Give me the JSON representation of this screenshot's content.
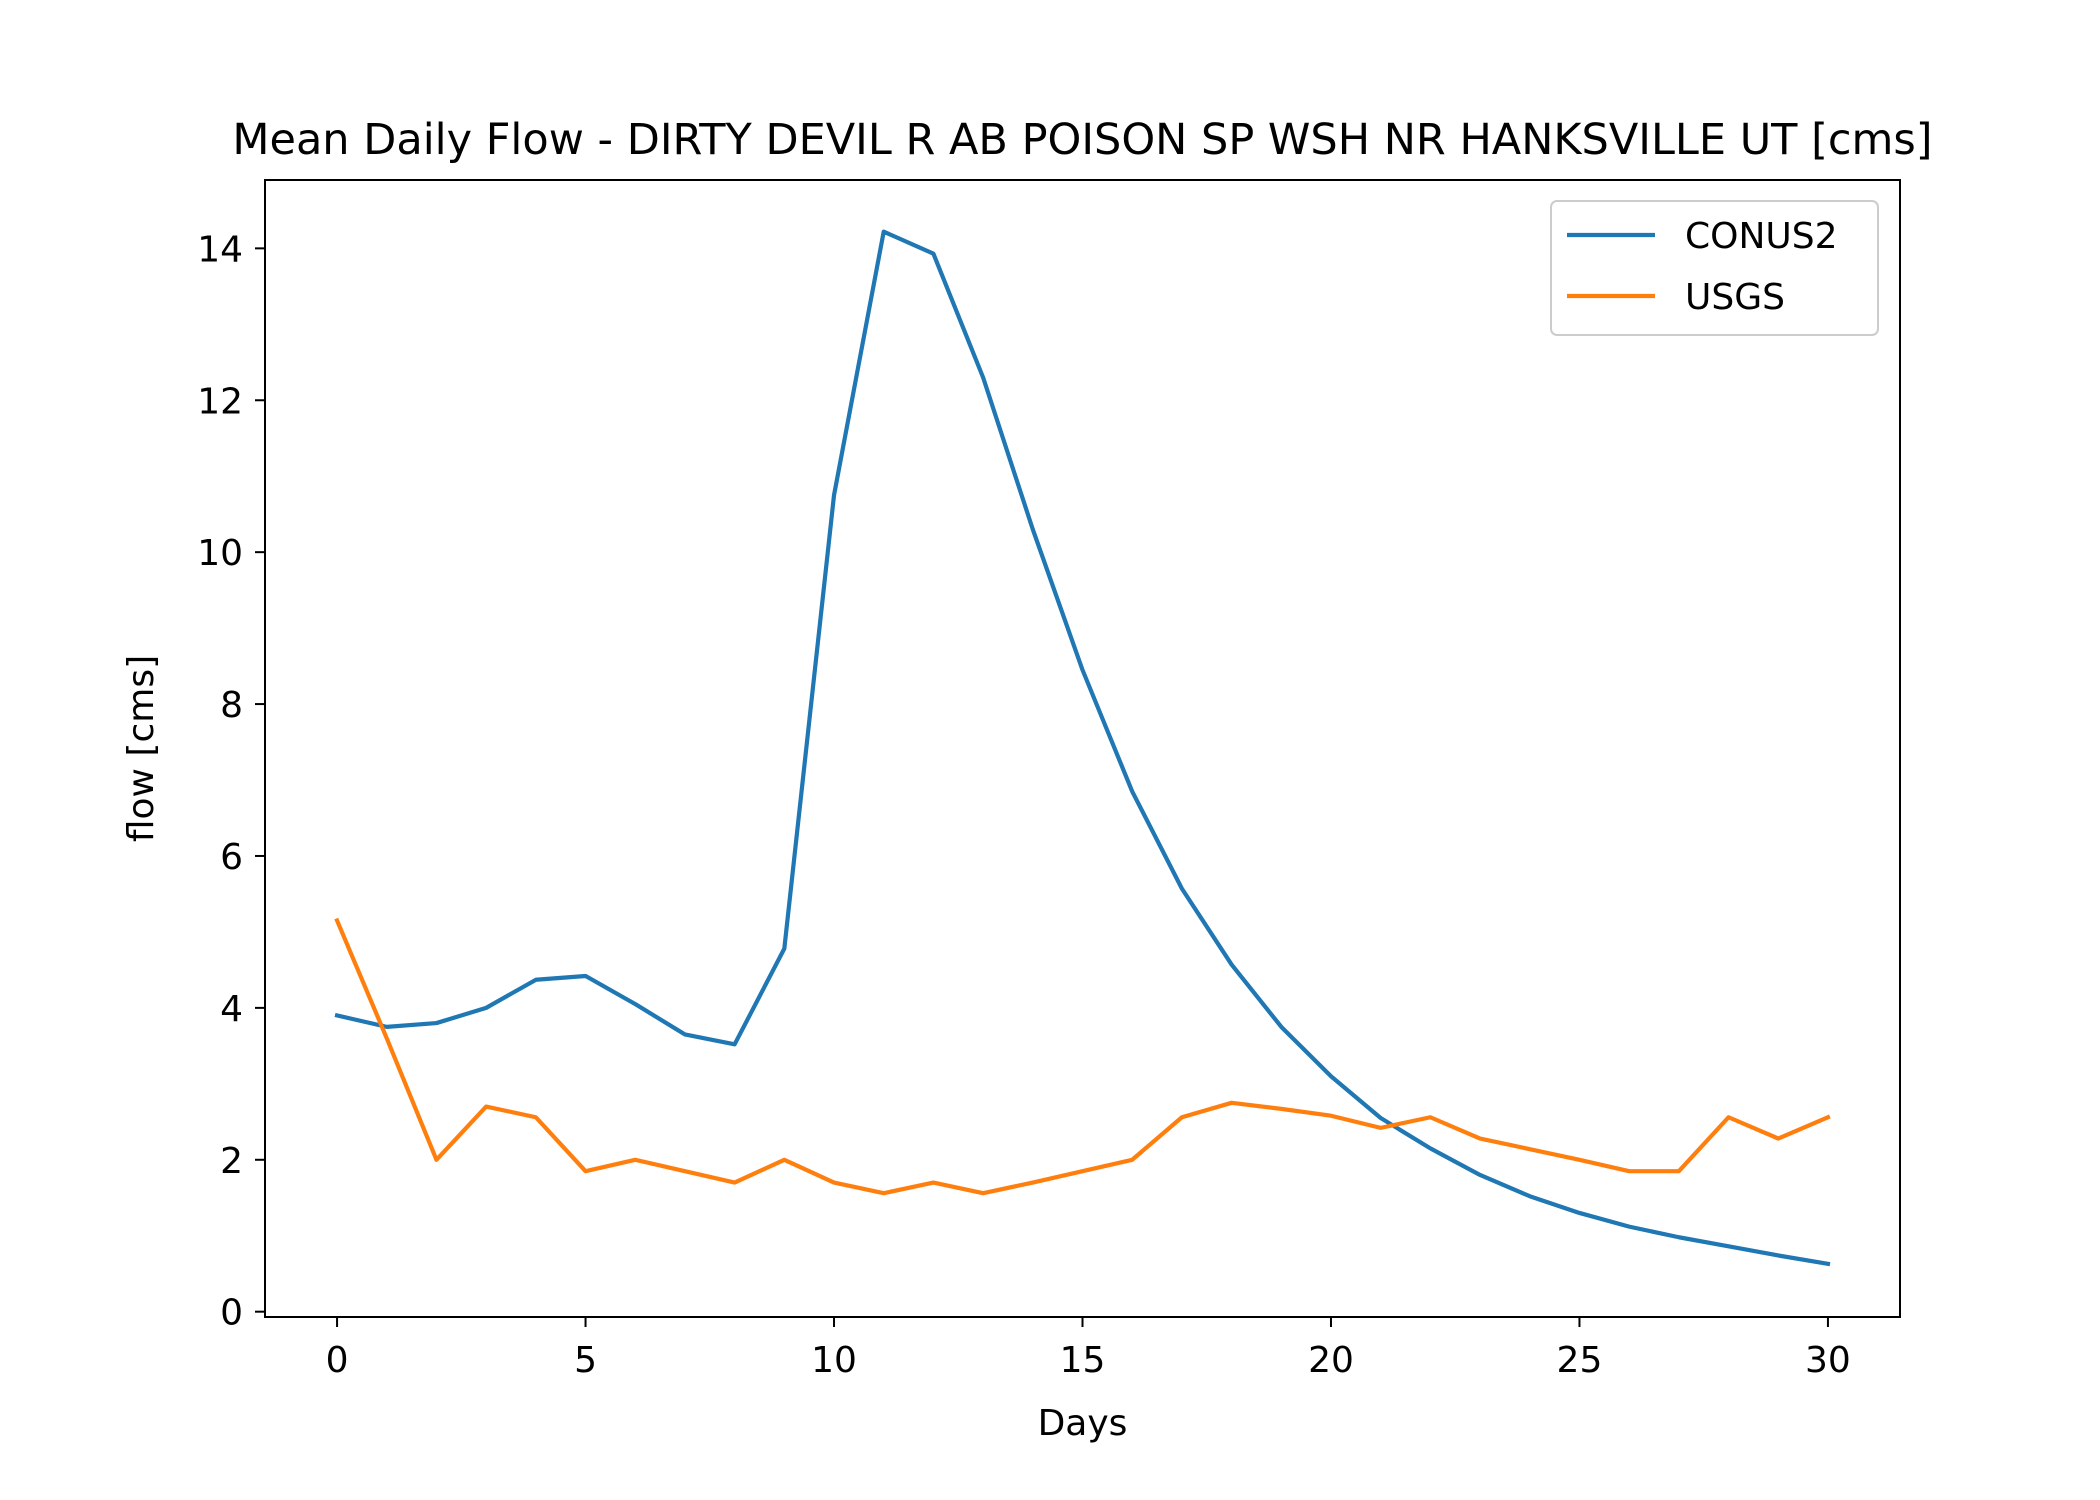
{
  "chart_data": {
    "type": "line",
    "title": "Mean Daily Flow - DIRTY DEVIL R AB POISON SP WSH NR HANKSVILLE UT [cms]",
    "xlabel": "Days",
    "ylabel": "flow [cms]",
    "xlim": [
      -1.45,
      31.45
    ],
    "ylim": [
      -0.07,
      14.9
    ],
    "xticks": [
      0,
      5,
      10,
      15,
      20,
      25,
      30
    ],
    "yticks": [
      0,
      2,
      4,
      6,
      8,
      10,
      12,
      14
    ],
    "grid": false,
    "legend_position": "top-right",
    "x": [
      0,
      1,
      2,
      3,
      4,
      5,
      6,
      7,
      8,
      9,
      10,
      11,
      12,
      13,
      14,
      15,
      16,
      17,
      18,
      19,
      20,
      21,
      22,
      23,
      24,
      25,
      26,
      27,
      28,
      29,
      30
    ],
    "series": [
      {
        "name": "CONUS2",
        "color": "#1f77b4",
        "values": [
          3.9,
          3.75,
          3.8,
          4.0,
          4.37,
          4.42,
          4.05,
          3.65,
          3.52,
          4.78,
          10.75,
          14.22,
          13.93,
          12.3,
          10.3,
          8.45,
          6.85,
          5.57,
          4.57,
          3.75,
          3.1,
          2.55,
          2.15,
          1.8,
          1.52,
          1.3,
          1.12,
          0.98,
          0.86,
          0.74,
          0.63
        ]
      },
      {
        "name": "USGS",
        "color": "#ff7f0e",
        "values": [
          5.15,
          3.6,
          2.0,
          2.7,
          2.56,
          1.85,
          2.0,
          1.85,
          1.7,
          2.0,
          1.7,
          1.56,
          1.7,
          1.56,
          1.7,
          1.85,
          2.0,
          2.56,
          2.75,
          2.67,
          2.58,
          2.42,
          2.56,
          2.28,
          2.14,
          2.0,
          1.85,
          1.85,
          2.56,
          2.28,
          2.56
        ]
      }
    ]
  }
}
